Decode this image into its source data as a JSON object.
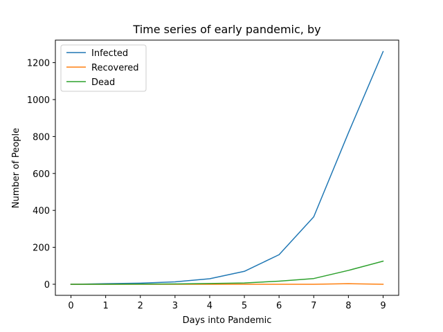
{
  "chart_data": {
    "type": "line",
    "title": "Time series of early pandemic, by",
    "xlabel": "Days into Pandemic",
    "ylabel": "Number of People",
    "x": [
      0,
      1,
      2,
      3,
      4,
      5,
      6,
      7,
      8,
      9
    ],
    "xlim": [
      -0.45,
      9.45
    ],
    "ylim": [
      -60,
      1322
    ],
    "xticks": [
      "0",
      "1",
      "2",
      "3",
      "4",
      "5",
      "6",
      "7",
      "8",
      "9"
    ],
    "yticks": [
      0,
      200,
      400,
      600,
      800,
      1000,
      1200
    ],
    "yticklabels": [
      "0",
      "200",
      "400",
      "600",
      "800",
      "1000",
      "1200"
    ],
    "grid": false,
    "legend_position": "top-left",
    "series": [
      {
        "name": "Infected",
        "color": "#1f77b4",
        "values": [
          0,
          3,
          6,
          13,
          30,
          70,
          160,
          365,
          820,
          1260
        ]
      },
      {
        "name": "Recovered",
        "color": "#ff7f0e",
        "values": [
          0,
          0,
          0,
          0,
          0,
          0,
          0,
          0,
          3,
          0
        ]
      },
      {
        "name": "Dead",
        "color": "#2ca02c",
        "values": [
          0,
          0,
          1,
          2,
          4,
          7,
          17,
          31,
          75,
          125
        ]
      }
    ]
  }
}
